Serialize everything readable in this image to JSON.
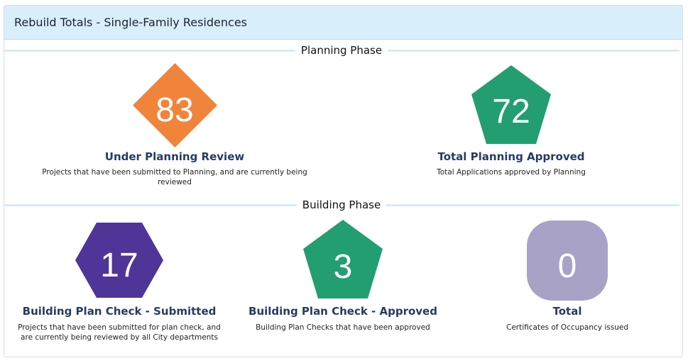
{
  "panel": {
    "title": "Rebuild Totals - Single-Family Residences"
  },
  "planning_phase": {
    "label": "Planning Phase",
    "stats": [
      {
        "value": "83",
        "title": "Under Planning Review",
        "description": "Projects that have been submitted to Planning, and are currently being reviewed",
        "shape": "diamond",
        "color": "#f0843a"
      },
      {
        "value": "72",
        "title": "Total Planning Approved",
        "description": "Total Applications approved by Planning",
        "shape": "pentagon",
        "color": "#239e71"
      }
    ]
  },
  "building_phase": {
    "label": "Building Phase",
    "stats": [
      {
        "value": "17",
        "title": "Building Plan Check - Submitted",
        "description": "Projects that have been submitted for plan check, and are currently being reviewed by all City departments",
        "shape": "hexagon",
        "color": "#4f3597"
      },
      {
        "value": "3",
        "title": "Building Plan Check - Approved",
        "description": "Building Plan Checks that have been approved",
        "shape": "pentagon",
        "color": "#239e71"
      },
      {
        "value": "0",
        "title": "Total",
        "description": "Certificates of Occupancy issued",
        "shape": "rounded-square",
        "color": "#a8a2c7"
      }
    ]
  }
}
